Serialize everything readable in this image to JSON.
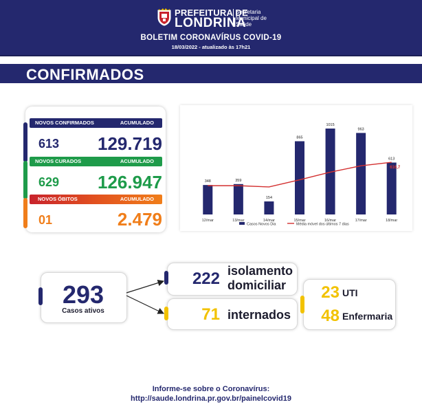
{
  "header": {
    "brand_line1": "PREFEITURA DE",
    "brand_line2": "LONDRINA",
    "dept_line1": "Secretaria",
    "dept_line2": "Municipal de",
    "dept_line3": "Saúde",
    "bulletin_title": "BOLETIM CORONAVÍRUS COVID-19",
    "bulletin_date": "18/03/2022 - atualizado às 17h21",
    "crest_icon": "city-crest-icon"
  },
  "section": {
    "title": "CONFIRMADOS"
  },
  "stats": {
    "confirmed": {
      "label": "NOVOS CONFIRMADOS",
      "acc_label": "ACUMULADO",
      "new": "613",
      "total": "129.719",
      "color": "#24286e"
    },
    "recovered": {
      "label": "NOVOS CURADOS",
      "acc_label": "ACUMULADO",
      "new": "629",
      "total": "126.947",
      "color": "#1e9b4a"
    },
    "deaths": {
      "label": "NOVOS ÓBITOS",
      "acc_label": "ACUMULADO",
      "new": "01",
      "total": "2.479",
      "color": "#f07e1a",
      "header_color_start": "#c8232c"
    }
  },
  "chart_data": {
    "type": "bar",
    "categories": [
      "12/mar",
      "13/mar",
      "14/mar",
      "15/mar",
      "16/mar",
      "17/mar",
      "18/mar"
    ],
    "series": [
      {
        "name": "Casos Novos Dia",
        "type": "bar",
        "values": [
          348,
          359,
          154,
          865,
          1015,
          963,
          613
        ],
        "color": "#24286e"
      },
      {
        "name": "Média móvel dos últimos 7 dias",
        "type": "line",
        "values": [
          340,
          340,
          325,
          410,
          500,
          575,
          616.7
        ],
        "color": "#d32f2f"
      }
    ],
    "bar_labels": [
      "348",
      "359",
      "154",
      "865",
      "1015",
      "963",
      "613"
    ],
    "line_last_label": "616,7",
    "ylim": [
      0,
      1015
    ],
    "legend_position": "bottom"
  },
  "active": {
    "total": "293",
    "total_label": "Casos ativos",
    "home_isolation": {
      "value": "222",
      "label_line1": "isolamento",
      "label_line2": "domiciliar"
    },
    "hospitalized": {
      "value": "71",
      "label": "internados"
    },
    "icu": {
      "value": "23",
      "label": "UTI"
    },
    "ward": {
      "value": "48",
      "label": "Enfermaria"
    },
    "accent_blue": "#24286e",
    "accent_yellow": "#f2c200"
  },
  "footer": {
    "line1": "Informe-se sobre o Coronavírus:",
    "line2": "http://saude.londrina.pr.gov.br/painelcovid19"
  }
}
